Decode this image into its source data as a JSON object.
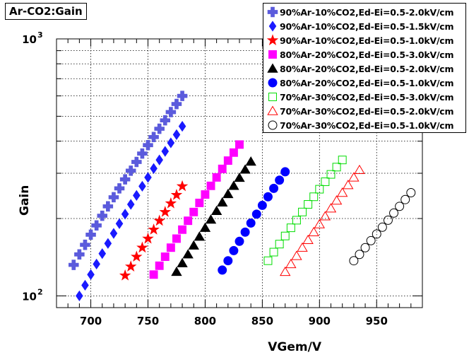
{
  "chart_data": {
    "type": "scatter",
    "title": "Ar-CO2:Gain",
    "xlabel": "VGem/V",
    "ylabel": "Gain",
    "xlim": [
      670,
      990
    ],
    "ylim": [
      90,
      1000
    ],
    "yscale": "log",
    "grid": true,
    "legend_position": "top-right",
    "x_ticks": [
      700,
      750,
      800,
      850,
      900,
      950
    ],
    "y_ticks": [
      {
        "value": 100,
        "label": "10",
        "exp": "2"
      },
      {
        "value": 1000,
        "label": "10",
        "exp": "3"
      }
    ],
    "series": [
      {
        "name": "90%Ar-10%CO2,Ed-Ei=0.5-2.0kV/cm",
        "marker": "cross",
        "color": "#5b5bdc",
        "filled": true,
        "x": [
          685,
          690,
          695,
          700,
          705,
          710,
          715,
          720,
          725,
          730,
          735,
          740,
          745,
          750,
          755,
          760,
          765,
          770,
          775,
          780
        ],
        "y": [
          132,
          145,
          158,
          173,
          188,
          205,
          223,
          242,
          262,
          284,
          307,
          332,
          358,
          386,
          415,
          447,
          482,
          519,
          558,
          600
        ]
      },
      {
        "name": "90%Ar-10%CO2,Ed-Ei=0.5-1.5kV/cm",
        "marker": "diamond",
        "color": "#1a1aff",
        "filled": true,
        "x": [
          690,
          695,
          700,
          705,
          710,
          715,
          720,
          725,
          730,
          735,
          740,
          745,
          750,
          755,
          760,
          765,
          770,
          775,
          780
        ],
        "y": [
          100,
          110,
          121,
          133,
          146,
          160,
          175,
          191,
          208,
          227,
          246,
          267,
          289,
          313,
          338,
          365,
          394,
          424,
          457
        ]
      },
      {
        "name": "90%Ar-10%CO2,Ed-Ei=0.5-1.0kV/cm",
        "marker": "star",
        "color": "#ff0000",
        "filled": true,
        "x": [
          730,
          735,
          740,
          745,
          750,
          755,
          760,
          765,
          770,
          775,
          780
        ],
        "y": [
          120,
          130,
          142,
          154,
          167,
          181,
          196,
          212,
          229,
          247,
          267
        ]
      },
      {
        "name": "80%Ar-20%CO2,Ed-Ei=0.5-3.0kV/cm",
        "marker": "square",
        "color": "#ff00ff",
        "filled": true,
        "x": [
          755,
          760,
          765,
          770,
          775,
          780,
          785,
          790,
          795,
          800,
          805,
          810,
          815,
          820,
          825,
          830
        ],
        "y": [
          121,
          131,
          142,
          154,
          167,
          181,
          196,
          212,
          230,
          248,
          268,
          289,
          312,
          336,
          361,
          388
        ]
      },
      {
        "name": "80%Ar-20%CO2,Ed-Ei=0.5-2.0kV/cm",
        "marker": "triangle",
        "color": "#000000",
        "filled": true,
        "x": [
          775,
          780,
          785,
          790,
          795,
          800,
          805,
          810,
          815,
          820,
          825,
          830,
          835,
          840
        ],
        "y": [
          124,
          134,
          145,
          157,
          170,
          184,
          198,
          214,
          231,
          249,
          268,
          288,
          310,
          333
        ]
      },
      {
        "name": "80%Ar-20%CO2,Ed-Ei=0.5-1.0kV/cm",
        "marker": "circle",
        "color": "#0000ff",
        "filled": true,
        "x": [
          815,
          820,
          825,
          830,
          835,
          840,
          845,
          850,
          855,
          860,
          865,
          870
        ],
        "y": [
          126,
          137,
          150,
          163,
          177,
          192,
          208,
          225,
          243,
          262,
          282,
          304
        ]
      },
      {
        "name": "70%Ar-30%CO2,Ed-Ei=0.5-3.0kV/cm",
        "marker": "square",
        "color": "#00dd00",
        "filled": false,
        "x": [
          855,
          860,
          865,
          870,
          875,
          880,
          885,
          890,
          895,
          900,
          905,
          910,
          915,
          920
        ],
        "y": [
          137,
          148,
          159,
          171,
          184,
          197,
          212,
          227,
          243,
          260,
          278,
          297,
          317,
          338
        ]
      },
      {
        "name": "70%Ar-30%CO2,Ed-Ei=0.5-2.0kV/cm",
        "marker": "triangle",
        "color": "#ff0000",
        "filled": false,
        "x": [
          870,
          875,
          880,
          885,
          890,
          895,
          900,
          905,
          910,
          915,
          920,
          925,
          930,
          935
        ],
        "y": [
          124,
          133,
          143,
          154,
          165,
          177,
          190,
          204,
          219,
          235,
          252,
          270,
          289,
          309
        ]
      },
      {
        "name": "70%Ar-30%CO2,Ed-Ei=0.5-1.0kV/cm",
        "marker": "circle",
        "color": "#000000",
        "filled": false,
        "x": [
          930,
          935,
          940,
          945,
          950,
          955,
          960,
          965,
          970,
          975,
          980
        ],
        "y": [
          137,
          145,
          154,
          164,
          174,
          185,
          197,
          210,
          223,
          237,
          252
        ]
      }
    ]
  }
}
